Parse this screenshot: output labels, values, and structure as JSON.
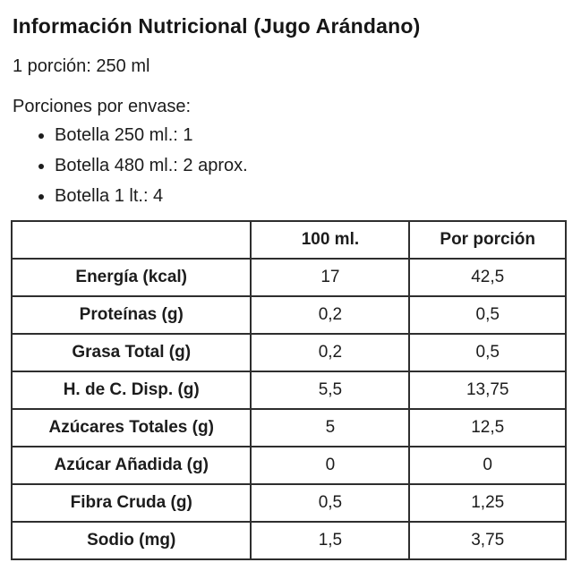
{
  "title": "Información Nutricional (Jugo Arándano)",
  "serving": "1 porción: 250 ml",
  "servings_heading": "Porciones por envase:",
  "servings_list": [
    "Botella 250 ml.: 1",
    "Botella 480 ml.: 2 aprox.",
    "Botella 1 lt.: 4"
  ],
  "table": {
    "columns": [
      "",
      "100 ml.",
      "Por porción"
    ],
    "rows": [
      {
        "label": "Energía (kcal)",
        "per100": "17",
        "per_portion": "42,5"
      },
      {
        "label": "Proteínas (g)",
        "per100": "0,2",
        "per_portion": "0,5"
      },
      {
        "label": "Grasa Total (g)",
        "per100": "0,2",
        "per_portion": "0,5"
      },
      {
        "label": "H. de C. Disp. (g)",
        "per100": "5,5",
        "per_portion": "13,75"
      },
      {
        "label": "Azúcares Totales (g)",
        "per100": "5",
        "per_portion": "12,5"
      },
      {
        "label": "Azúcar Añadida (g)",
        "per100": "0",
        "per_portion": "0"
      },
      {
        "label": "Fibra Cruda (g)",
        "per100": "0,5",
        "per_portion": "1,25"
      },
      {
        "label": "Sodio (mg)",
        "per100": "1,5",
        "per_portion": "3,75"
      }
    ]
  },
  "colors": {
    "text": "#1c1c1c",
    "border": "#2e2e2e",
    "background": "#ffffff"
  }
}
